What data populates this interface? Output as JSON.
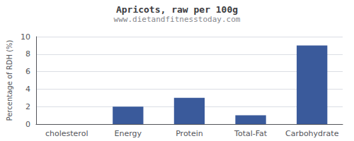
{
  "chart_data": {
    "type": "bar",
    "title": "Apricots, raw per 100g",
    "subtitle": "www.dietandfitnesstoday.com",
    "categories": [
      "cholesterol",
      "Energy",
      "Protein",
      "Total-Fat",
      "Carbohydrate"
    ],
    "values": [
      0,
      2,
      3,
      1,
      9
    ],
    "color": "#3a5a9b",
    "ylabel": "Percentage of RDH (%)",
    "ylim": [
      0,
      10
    ],
    "yticks": [
      0,
      2,
      4,
      6,
      8,
      10
    ],
    "grid": true
  }
}
